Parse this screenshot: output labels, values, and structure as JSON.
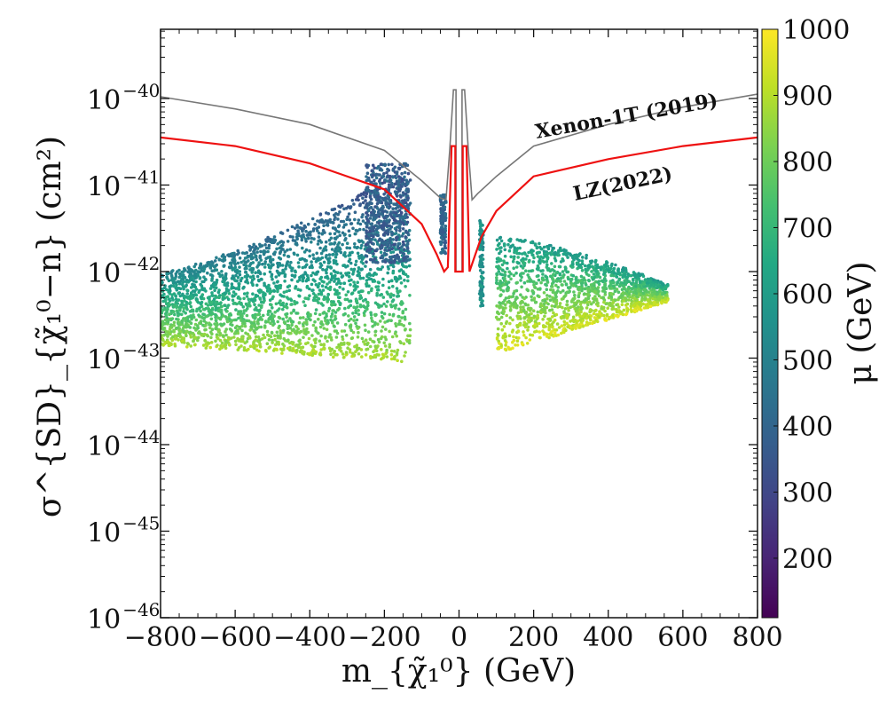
{
  "chart_data": {
    "type": "scatter",
    "title": "",
    "xlabel": "m_{χ̃₁⁰} (GeV)",
    "ylabel": "σ^{SD}_{χ̃₁⁰−n} (cm²)",
    "xlim": [
      -800,
      800
    ],
    "ylim_log10": [
      -46,
      -39.2
    ],
    "x_ticks": [
      -800,
      -600,
      -400,
      -200,
      0,
      200,
      400,
      600,
      800
    ],
    "x_tick_labels": [
      "−800",
      "−600",
      "−400",
      "−200",
      "0",
      "200",
      "400",
      "600",
      "800"
    ],
    "y_ticks_exp": [
      -46,
      -45,
      -44,
      -43,
      -42,
      -41,
      -40
    ],
    "y_tick_base": "10",
    "y_tick_exps": [
      "−46",
      "−45",
      "−44",
      "−43",
      "−42",
      "−41",
      "−40"
    ],
    "colorbar": {
      "label": "μ (GeV)",
      "min": 110,
      "max": 1000,
      "ticks": [
        200,
        300,
        400,
        500,
        600,
        700,
        800,
        900,
        1000
      ],
      "colormap": "viridis"
    },
    "curves": [
      {
        "name": "Xenon-1T (2019)",
        "color": "#777777",
        "points": [
          [
            -800,
            -39.98
          ],
          [
            -600,
            -40.12
          ],
          [
            -400,
            -40.3
          ],
          [
            -200,
            -40.6
          ],
          [
            -100,
            -40.95
          ],
          [
            -50,
            -41.15
          ],
          [
            -35,
            -41.17
          ],
          [
            -25,
            -40.6
          ],
          [
            -15,
            -39.9
          ],
          [
            -8,
            -39.9
          ],
          [
            -8,
            -42.0
          ],
          [
            8,
            -42.0
          ],
          [
            8,
            -39.9
          ],
          [
            15,
            -39.9
          ],
          [
            25,
            -40.6
          ],
          [
            35,
            -41.17
          ],
          [
            50,
            -41.1
          ],
          [
            100,
            -40.9
          ],
          [
            200,
            -40.55
          ],
          [
            400,
            -40.3
          ],
          [
            600,
            -40.1
          ],
          [
            800,
            -39.95
          ]
        ]
      },
      {
        "name": "LZ (2022)",
        "color": "#ee1111",
        "points": [
          [
            -800,
            -40.45
          ],
          [
            -600,
            -40.55
          ],
          [
            -400,
            -40.75
          ],
          [
            -200,
            -41.05
          ],
          [
            -100,
            -41.45
          ],
          [
            -60,
            -41.8
          ],
          [
            -40,
            -42.0
          ],
          [
            -30,
            -41.95
          ],
          [
            -20,
            -40.55
          ],
          [
            -10,
            -40.55
          ],
          [
            -10,
            -42.0
          ],
          [
            10,
            -42.0
          ],
          [
            10,
            -40.55
          ],
          [
            20,
            -40.55
          ],
          [
            28,
            -42.0
          ],
          [
            40,
            -41.85
          ],
          [
            60,
            -41.6
          ],
          [
            100,
            -41.3
          ],
          [
            200,
            -40.9
          ],
          [
            400,
            -40.7
          ],
          [
            600,
            -40.55
          ],
          [
            800,
            -40.45
          ]
        ]
      }
    ],
    "scatter_regions": [
      {
        "name": "negative-mass region",
        "x_range": [
          -800,
          -130
        ],
        "log_sigma_range": [
          -43.05,
          -40.75
        ],
        "mu_range": [
          300,
          1000
        ]
      },
      {
        "name": "Z-funnel negative",
        "x_range": [
          -50,
          -35
        ],
        "log_sigma_range": [
          -41.8,
          -41.1
        ],
        "mu_range": [
          350,
          450
        ]
      },
      {
        "name": "Higgs-funnel positive",
        "x_range": [
          55,
          65
        ],
        "log_sigma_range": [
          -42.4,
          -41.4
        ],
        "mu_range": [
          500,
          620
        ]
      },
      {
        "name": "positive-mass region",
        "x_range": [
          100,
          560
        ],
        "log_sigma_range": [
          -42.95,
          -41.55
        ],
        "mu_range": [
          520,
          1000
        ]
      }
    ],
    "annotations": [
      {
        "text": "Xenon-1T (2019)",
        "x": 360,
        "log_sigma": -40.2,
        "rotation_deg": -10
      },
      {
        "text": "LZ(2022)",
        "x": 380,
        "log_sigma": -40.95,
        "rotation_deg": -12
      }
    ]
  }
}
